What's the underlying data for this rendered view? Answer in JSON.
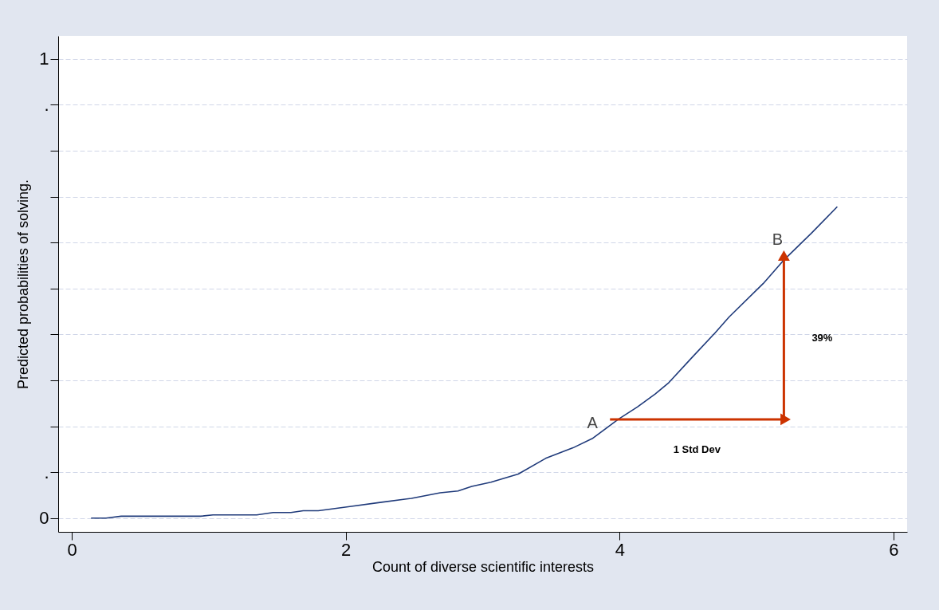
{
  "chart_data": {
    "type": "line",
    "xlabel": "Count of diverse scientific interests",
    "ylabel": "Predicted probabilities of solving.",
    "xlim": [
      -0.1,
      6.1
    ],
    "xticks": [
      0,
      2,
      4,
      6
    ],
    "ylim": [
      -0.03,
      1.05
    ],
    "yticks": [
      0,
      {
        "value": 0.1,
        "label": "."
      },
      {
        "value": 0.2,
        "label": null
      },
      {
        "value": 0.3,
        "label": null
      },
      {
        "value": 0.4,
        "label": null
      },
      {
        "value": 0.5,
        "label": null
      },
      {
        "value": 0.6,
        "label": null
      },
      {
        "value": 0.7,
        "label": null
      },
      {
        "value": 0.8,
        "label": null
      },
      {
        "value": 0.9,
        "label": "."
      },
      1
    ],
    "grid": "y",
    "line_style": "solid",
    "series": [
      {
        "color": "#1f3a7a",
        "x": [
          0.14,
          0.25,
          0.36,
          0.94,
          1.03,
          1.35,
          1.47,
          1.6,
          1.69,
          1.8,
          2.03,
          2.25,
          2.48,
          2.69,
          2.82,
          2.92,
          3.06,
          3.26,
          3.46,
          3.66,
          3.8,
          3.99,
          4.13,
          4.26,
          4.36,
          4.53,
          4.7,
          4.8,
          5.05,
          5.2,
          5.4,
          5.59
        ],
        "values": [
          0,
          0,
          0.004,
          0.004,
          0.007,
          0.007,
          0.012,
          0.012,
          0.016,
          0.016,
          0.025,
          0.034,
          0.043,
          0.055,
          0.059,
          0.069,
          0.078,
          0.096,
          0.13,
          0.153,
          0.173,
          0.215,
          0.242,
          0.27,
          0.295,
          0.35,
          0.404,
          0.438,
          0.511,
          0.562,
          0.62,
          0.678
        ]
      },
      {
        "color": "#cc3300",
        "marker": "triangle",
        "x": [
          3.93,
          5.2
        ],
        "values": [
          0.215,
          0.215
        ]
      },
      {
        "color": "#cc3300",
        "marker": "triangle",
        "x": [
          5.2,
          5.2
        ],
        "values": [
          0.215,
          0.568
        ]
      }
    ],
    "annotations": [
      "A",
      "B",
      "39%",
      "1 Std Dev"
    ]
  }
}
